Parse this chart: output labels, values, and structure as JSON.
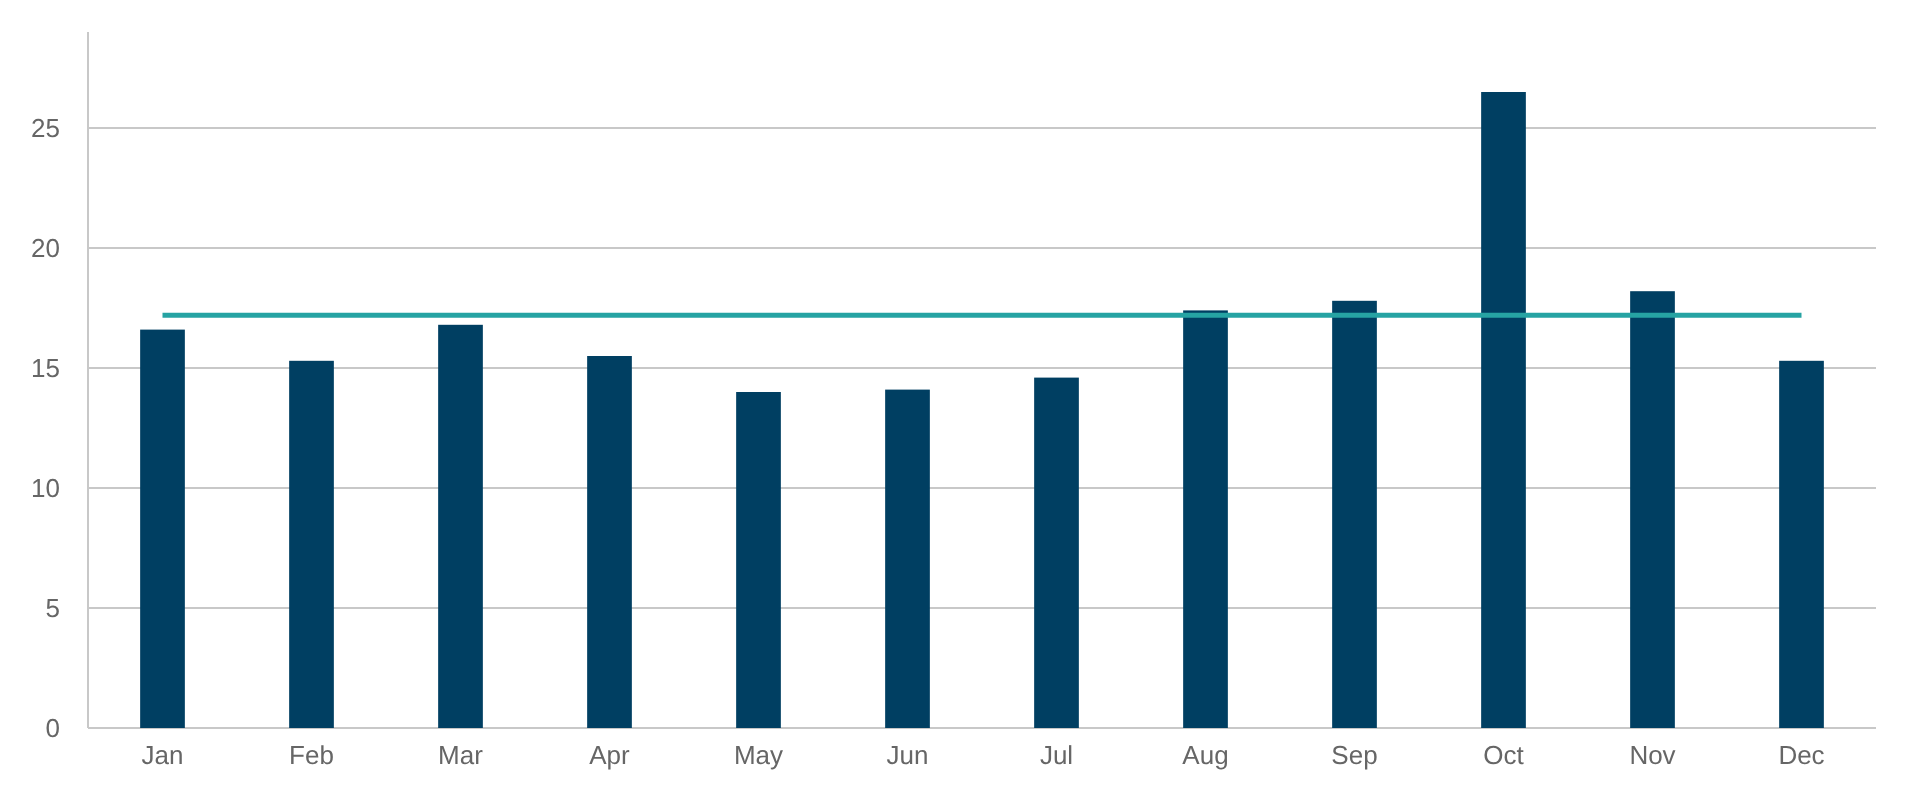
{
  "chart_data": {
    "type": "bar",
    "categories": [
      "Jan",
      "Feb",
      "Mar",
      "Apr",
      "May",
      "Jun",
      "Jul",
      "Aug",
      "Sep",
      "Oct",
      "Nov",
      "Dec"
    ],
    "values": [
      16.6,
      15.3,
      16.8,
      15.5,
      14.0,
      14.1,
      14.6,
      17.4,
      17.8,
      26.5,
      18.2,
      15.3
    ],
    "color": "#003f62",
    "ylim": [
      0,
      29
    ],
    "yticks": [
      0,
      5,
      10,
      15,
      20,
      25
    ],
    "grid": "y",
    "ref_lines": [
      {
        "axis": "y",
        "value": 17.2,
        "color": "#26a3a3"
      }
    ]
  }
}
